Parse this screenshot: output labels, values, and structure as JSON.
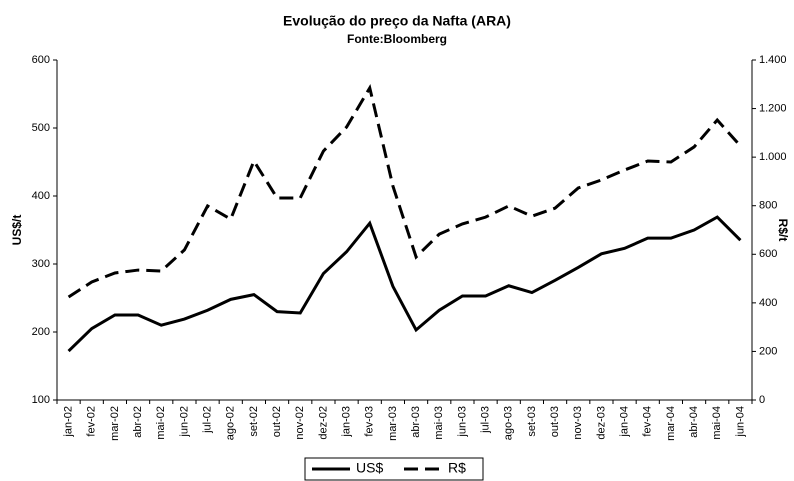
{
  "chart_data": {
    "type": "line",
    "title": "Evolução do preço da Nafta (ARA)",
    "subtitle": "Fonte:Bloomberg",
    "ylabel": "US$/t",
    "y2label": "R$/t",
    "categories": [
      "jan-02",
      "fev-02",
      "mar-02",
      "abr-02",
      "mai-02",
      "jun-02",
      "jul-02",
      "ago-02",
      "set-02",
      "out-02",
      "nov-02",
      "dez-02",
      "jan-03",
      "fev-03",
      "mar-03",
      "abr-03",
      "mai-03",
      "jun-03",
      "jul-03",
      "ago-03",
      "set-03",
      "out-03",
      "nov-03",
      "dez-03",
      "jan-04",
      "fev-04",
      "mar-04",
      "abr-04",
      "mai-04",
      "jun-04"
    ],
    "series": [
      {
        "name": "US$",
        "color": "#000000",
        "style": "solid",
        "axis": "y",
        "values": [
          172,
          205,
          225,
          225,
          210,
          219,
          232,
          248,
          255,
          230,
          228,
          286,
          318,
          360,
          267,
          203,
          232,
          253,
          253,
          268,
          258,
          276,
          295,
          315,
          323,
          338,
          338,
          350,
          369,
          335
        ]
      },
      {
        "name": "R$",
        "color": "#000000",
        "style": "dashed",
        "axis": "y2",
        "values": [
          424,
          486,
          523,
          535,
          531,
          618,
          799,
          745,
          984,
          832,
          832,
          1025,
          1124,
          1285,
          881,
          589,
          683,
          725,
          753,
          799,
          757,
          790,
          873,
          906,
          947,
          984,
          980,
          1042,
          1153,
          1046
        ]
      }
    ],
    "ylim": [
      100,
      600
    ],
    "yticks": [
      100,
      200,
      300,
      400,
      500,
      600
    ],
    "y2lim": [
      0,
      1400
    ],
    "y2ticks": [
      0,
      200,
      400,
      600,
      800,
      {
        "value": 1000,
        "label": "1.000"
      },
      {
        "value": 1200,
        "label": "1.200"
      },
      {
        "value": 1400,
        "label": "1.400"
      }
    ],
    "grid": false,
    "legend": "bottom"
  }
}
